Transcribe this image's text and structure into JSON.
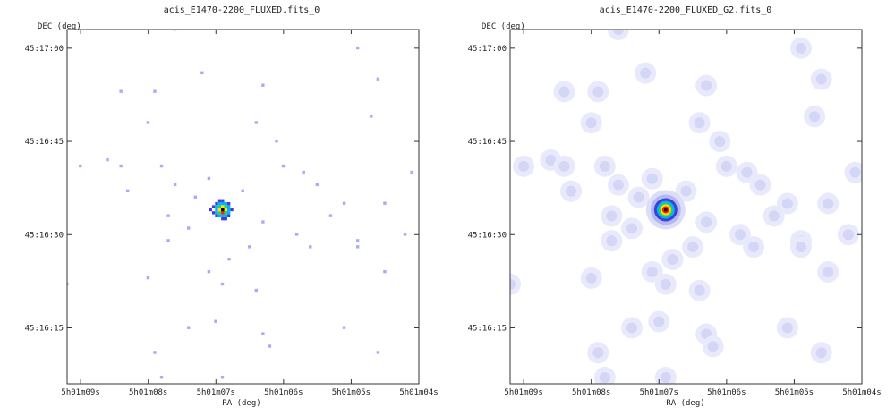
{
  "chart_data": [
    {
      "type": "heatmap",
      "title": "acis_E1470-2200_FLUXED.fits_0",
      "xlabel": "RA (deg)",
      "ylabel": "DEC (deg)",
      "xticks": [
        "5h01m09s",
        "5h01m08s",
        "5h01m07s",
        "5h01m06s",
        "5h01m05s",
        "5h01m04s"
      ],
      "yticks": [
        "45:17:00",
        "45:16:45",
        "45:16:30",
        "45:16:15"
      ],
      "xlim": [
        "5h01m09.2s",
        "5h01m04.0s"
      ],
      "ylim": [
        "45:16:06",
        "45:17:03"
      ],
      "grid": false,
      "colormap": [
        "#ffffff",
        "#b9bdf5",
        "#3f3fd8",
        "#00b0ff",
        "#2fd060",
        "#ffe000",
        "#ff2000",
        "#000000"
      ],
      "hotspot": {
        "ra": "5h01m06.9s",
        "dec": "45:16:34",
        "peak": "high"
      },
      "events": [
        {
          "ra": "5h01m04.9s",
          "dec": "45:17:00"
        },
        {
          "ra": "5h01m04.6s",
          "dec": "45:16:55"
        },
        {
          "ra": "5h01m08.4s",
          "dec": "45:16:53"
        },
        {
          "ra": "5h01m07.2s",
          "dec": "45:16:56"
        },
        {
          "ra": "5h01m06.3s",
          "dec": "45:16:54"
        },
        {
          "ra": "5h01m07.9s",
          "dec": "45:16:53"
        },
        {
          "ra": "5h01m04.7s",
          "dec": "45:16:49"
        },
        {
          "ra": "5h01m08.0s",
          "dec": "45:16:48"
        },
        {
          "ra": "5h01m06.4s",
          "dec": "45:16:48"
        },
        {
          "ra": "5h01m06.1s",
          "dec": "45:16:45"
        },
        {
          "ra": "5h01m08.6s",
          "dec": "45:16:42"
        },
        {
          "ra": "5h01m09.0s",
          "dec": "45:16:41"
        },
        {
          "ra": "5h01m08.4s",
          "dec": "45:16:41"
        },
        {
          "ra": "5h01m07.8s",
          "dec": "45:16:41"
        },
        {
          "ra": "5h01m06.0s",
          "dec": "45:16:41"
        },
        {
          "ra": "5h01m05.7s",
          "dec": "45:16:40"
        },
        {
          "ra": "5h01m04.1s",
          "dec": "45:16:40"
        },
        {
          "ra": "5h01m07.1s",
          "dec": "45:16:39"
        },
        {
          "ra": "5h01m07.6s",
          "dec": "45:16:38"
        },
        {
          "ra": "5h01m05.5s",
          "dec": "45:16:38"
        },
        {
          "ra": "5h01m08.3s",
          "dec": "45:16:37"
        },
        {
          "ra": "5h01m07.3s",
          "dec": "45:16:36"
        },
        {
          "ra": "5h01m06.6s",
          "dec": "45:16:37"
        },
        {
          "ra": "5h01m05.1s",
          "dec": "45:16:35"
        },
        {
          "ra": "5h01m04.5s",
          "dec": "45:16:35"
        },
        {
          "ra": "5h01m07.7s",
          "dec": "45:16:33"
        },
        {
          "ra": "5h01m05.3s",
          "dec": "45:16:33"
        },
        {
          "ra": "5h01m06.3s",
          "dec": "45:16:32"
        },
        {
          "ra": "5h01m07.4s",
          "dec": "45:16:31"
        },
        {
          "ra": "5h01m05.8s",
          "dec": "45:16:30"
        },
        {
          "ra": "5h01m04.9s",
          "dec": "45:16:29"
        },
        {
          "ra": "5h01m04.2s",
          "dec": "45:16:30"
        },
        {
          "ra": "5h01m07.7s",
          "dec": "45:16:29"
        },
        {
          "ra": "5h01m06.5s",
          "dec": "45:16:28"
        },
        {
          "ra": "5h01m05.6s",
          "dec": "45:16:28"
        },
        {
          "ra": "5h01m06.8s",
          "dec": "45:16:26"
        },
        {
          "ra": "5h01m04.9s",
          "dec": "45:16:28"
        },
        {
          "ra": "5h01m07.1s",
          "dec": "45:16:24"
        },
        {
          "ra": "5h01m04.5s",
          "dec": "45:16:24"
        },
        {
          "ra": "5h01m09.2s",
          "dec": "45:16:22"
        },
        {
          "ra": "5h01m08.0s",
          "dec": "45:16:23"
        },
        {
          "ra": "5h01m06.9s",
          "dec": "45:16:22"
        },
        {
          "ra": "5h01m06.4s",
          "dec": "45:16:21"
        },
        {
          "ra": "5h01m07.0s",
          "dec": "45:16:16"
        },
        {
          "ra": "5h01m07.4s",
          "dec": "45:16:15"
        },
        {
          "ra": "5h01m06.3s",
          "dec": "45:16:14"
        },
        {
          "ra": "5h01m05.1s",
          "dec": "45:16:15"
        },
        {
          "ra": "5h01m06.2s",
          "dec": "45:16:12"
        },
        {
          "ra": "5h01m07.9s",
          "dec": "45:16:11"
        },
        {
          "ra": "5h01m04.6s",
          "dec": "45:16:11"
        },
        {
          "ra": "5h01m06.9s",
          "dec": "45:16:07"
        },
        {
          "ra": "5h01m07.8s",
          "dec": "45:16:07"
        },
        {
          "ra": "5h01m07.6s",
          "dec": "45:17:03"
        }
      ]
    },
    {
      "type": "heatmap",
      "title": "acis_E1470-2200_FLUXED_G2.fits_0",
      "xlabel": "RA (deg)",
      "ylabel": "DEC (deg)",
      "xticks": [
        "5h01m09s",
        "5h01m08s",
        "5h01m07s",
        "5h01m06s",
        "5h01m05s",
        "5h01m04s"
      ],
      "yticks": [
        "45:17:00",
        "45:16:45",
        "45:16:30",
        "45:16:15"
      ],
      "xlim": [
        "5h01m09.2s",
        "5h01m04.0s"
      ],
      "ylim": [
        "45:16:06",
        "45:17:03"
      ],
      "grid": false,
      "colormap": [
        "#ffffff",
        "#e6e8fb",
        "#c9ccf4",
        "#3f3fd8",
        "#00b0ff",
        "#2fd060",
        "#ffe000",
        "#ff2000",
        "#000000"
      ],
      "hotspot": {
        "ra": "5h01m06.9s",
        "dec": "45:16:34",
        "peak": "high",
        "smoothed": true
      }
    }
  ]
}
